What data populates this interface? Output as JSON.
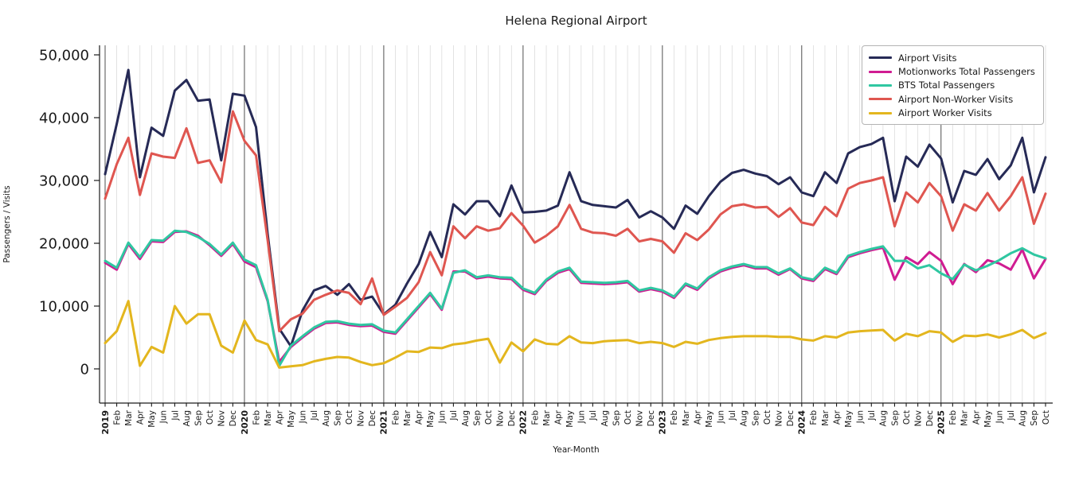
{
  "title": "Helena Regional Airport",
  "axes": {
    "xlabel": "Year-Month",
    "ylabel": "Passengers / Visits"
  },
  "chart_data": {
    "type": "line",
    "title": "Helena Regional Airport",
    "xlabel": "Year-Month",
    "ylabel": "Passengers / Visits",
    "ylim": [
      0,
      50000
    ],
    "grid": "vertical gridline per month, dark separator line at each January",
    "legend_position": "top-right",
    "y_tick_values": [
      0,
      10000,
      20000,
      30000,
      40000,
      50000
    ],
    "y_tick_labels": [
      "0",
      "10,000",
      "20,000",
      "30,000",
      "40,000",
      "50,000"
    ],
    "x_labels": [
      "2019",
      "Feb",
      "Mar",
      "Apr",
      "May",
      "Jun",
      "Jul",
      "Aug",
      "Sep",
      "Oct",
      "Nov",
      "Dec",
      "2020",
      "Feb",
      "Mar",
      "Apr",
      "May",
      "Jun",
      "Jul",
      "Aug",
      "Sep",
      "Oct",
      "Nov",
      "Dec",
      "2021",
      "Feb",
      "Mar",
      "Apr",
      "May",
      "Jun",
      "Jul",
      "Aug",
      "Sep",
      "Oct",
      "Nov",
      "Dec",
      "2022",
      "Feb",
      "Mar",
      "Apr",
      "May",
      "Jun",
      "Jul",
      "Aug",
      "Sep",
      "Oct",
      "Nov",
      "Dec",
      "2023",
      "Feb",
      "Mar",
      "Apr",
      "May",
      "Jun",
      "Jul",
      "Aug",
      "Sep",
      "Oct",
      "Nov",
      "Dec",
      "2024",
      "Feb",
      "Mar",
      "Apr",
      "May",
      "Jun",
      "Jul",
      "Aug",
      "Sep",
      "Oct",
      "Nov",
      "Dec",
      "2025",
      "Feb",
      "Mar",
      "Apr",
      "May",
      "Jun",
      "Jul",
      "Aug",
      "Sep",
      "Oct"
    ],
    "series": [
      {
        "name": "Airport Visits",
        "color": "#262a56",
        "values": [
          31000,
          39000,
          47600,
          30500,
          38400,
          37100,
          44300,
          46000,
          42700,
          42900,
          33200,
          43800,
          43500,
          38500,
          21500,
          6400,
          3600,
          9300,
          12500,
          13200,
          11800,
          13500,
          11000,
          11500,
          8700,
          10200,
          13600,
          16700,
          21800,
          17800,
          26200,
          24600,
          26700,
          26700,
          24300,
          29200,
          24900,
          25000,
          25200,
          26000,
          31300,
          26700,
          26100,
          25900,
          25700,
          26900,
          24100,
          25100,
          24100,
          22300,
          26000,
          24700,
          27500,
          29800,
          31200,
          31700,
          31100,
          30700,
          29400,
          30500,
          28100,
          27500,
          31300,
          29600,
          34300,
          35300,
          35800,
          36800,
          26700,
          33800,
          32200,
          35700,
          33500,
          26500,
          31500,
          30900,
          33400,
          30200,
          32400,
          36800,
          28100,
          33700
        ]
      },
      {
        "name": "Motionworks Total Passengers",
        "color": "#d01c92",
        "values": [
          16900,
          15800,
          19900,
          17500,
          20300,
          20200,
          21800,
          21900,
          21200,
          19700,
          18000,
          19900,
          17100,
          16200,
          10800,
          1100,
          3500,
          5000,
          6400,
          7300,
          7400,
          7000,
          6800,
          6900,
          5900,
          5600,
          7700,
          9800,
          11900,
          9400,
          15500,
          15500,
          14400,
          14700,
          14400,
          14300,
          12600,
          11900,
          14000,
          15300,
          15900,
          13700,
          13600,
          13500,
          13600,
          13800,
          12300,
          12700,
          12300,
          11300,
          13400,
          12600,
          14400,
          15500,
          16100,
          16500,
          16000,
          16000,
          15000,
          15900,
          14400,
          14000,
          15900,
          15100,
          17800,
          18400,
          18900,
          19300,
          14200,
          17800,
          16700,
          18600,
          17200,
          13500,
          16700,
          15400,
          17300,
          16800,
          15800,
          19000,
          14400,
          17500
        ]
      },
      {
        "name": "BTS Total Passengers",
        "color": "#2fc7a1",
        "values": [
          17200,
          16100,
          20100,
          17800,
          20500,
          20400,
          22000,
          21800,
          21000,
          19900,
          18200,
          20100,
          17400,
          16500,
          11000,
          500,
          3700,
          5200,
          6600,
          7500,
          7600,
          7200,
          7000,
          7100,
          6100,
          5800,
          7900,
          10000,
          12100,
          9600,
          15300,
          15700,
          14600,
          14900,
          14600,
          14500,
          12800,
          12100,
          14200,
          15500,
          16100,
          13900,
          13800,
          13700,
          13800,
          14000,
          12500,
          12900,
          12500,
          11500,
          13600,
          12800,
          14600,
          15700,
          16300,
          16700,
          16200,
          16200,
          15200,
          16000,
          14600,
          14200,
          16100,
          15300,
          18000,
          18600,
          19100,
          19500,
          17200,
          17200,
          16000,
          16500,
          15200,
          14300,
          16600,
          15700,
          16400,
          17300,
          18400,
          19200,
          18200,
          17600
        ]
      },
      {
        "name": "Airport Non-Worker Visits",
        "color": "#df5650",
        "values": [
          27100,
          32600,
          36800,
          27700,
          34300,
          33800,
          33600,
          38300,
          32800,
          33200,
          29700,
          41000,
          36300,
          34000,
          20500,
          6000,
          7900,
          8800,
          11000,
          11800,
          12500,
          12100,
          10300,
          14400,
          8600,
          9900,
          11300,
          13800,
          18600,
          14900,
          22700,
          20800,
          22700,
          22000,
          22400,
          24800,
          22800,
          20100,
          21200,
          22700,
          26100,
          22300,
          21700,
          21600,
          21200,
          22300,
          20300,
          20700,
          20300,
          18500,
          21600,
          20500,
          22200,
          24600,
          25900,
          26200,
          25700,
          25800,
          24200,
          25600,
          23300,
          22900,
          25800,
          24300,
          28700,
          29600,
          30000,
          30500,
          22700,
          28100,
          26500,
          29600,
          27500,
          22000,
          26200,
          25200,
          28000,
          25200,
          27500,
          30500,
          23100,
          27900
        ]
      },
      {
        "name": "Airport Worker Visits",
        "color": "#e3b61e",
        "values": [
          4100,
          6000,
          10800,
          500,
          3500,
          2600,
          10000,
          7200,
          8700,
          8700,
          3700,
          2600,
          7700,
          4600,
          3900,
          200,
          400,
          600,
          1200,
          1600,
          1900,
          1800,
          1100,
          600,
          900,
          1800,
          2800,
          2700,
          3400,
          3300,
          3900,
          4100,
          4500,
          4800,
          1000,
          4200,
          2800,
          4700,
          4000,
          3900,
          5200,
          4200,
          4100,
          4400,
          4500,
          4600,
          4100,
          4300,
          4100,
          3500,
          4300,
          4000,
          4600,
          4900,
          5100,
          5200,
          5200,
          5200,
          5100,
          5100,
          4700,
          4500,
          5200,
          5000,
          5800,
          6000,
          6100,
          6200,
          4500,
          5600,
          5200,
          6000,
          5800,
          4300,
          5300,
          5200,
          5500,
          5000,
          5500,
          6200,
          4900,
          5700
        ]
      }
    ]
  }
}
